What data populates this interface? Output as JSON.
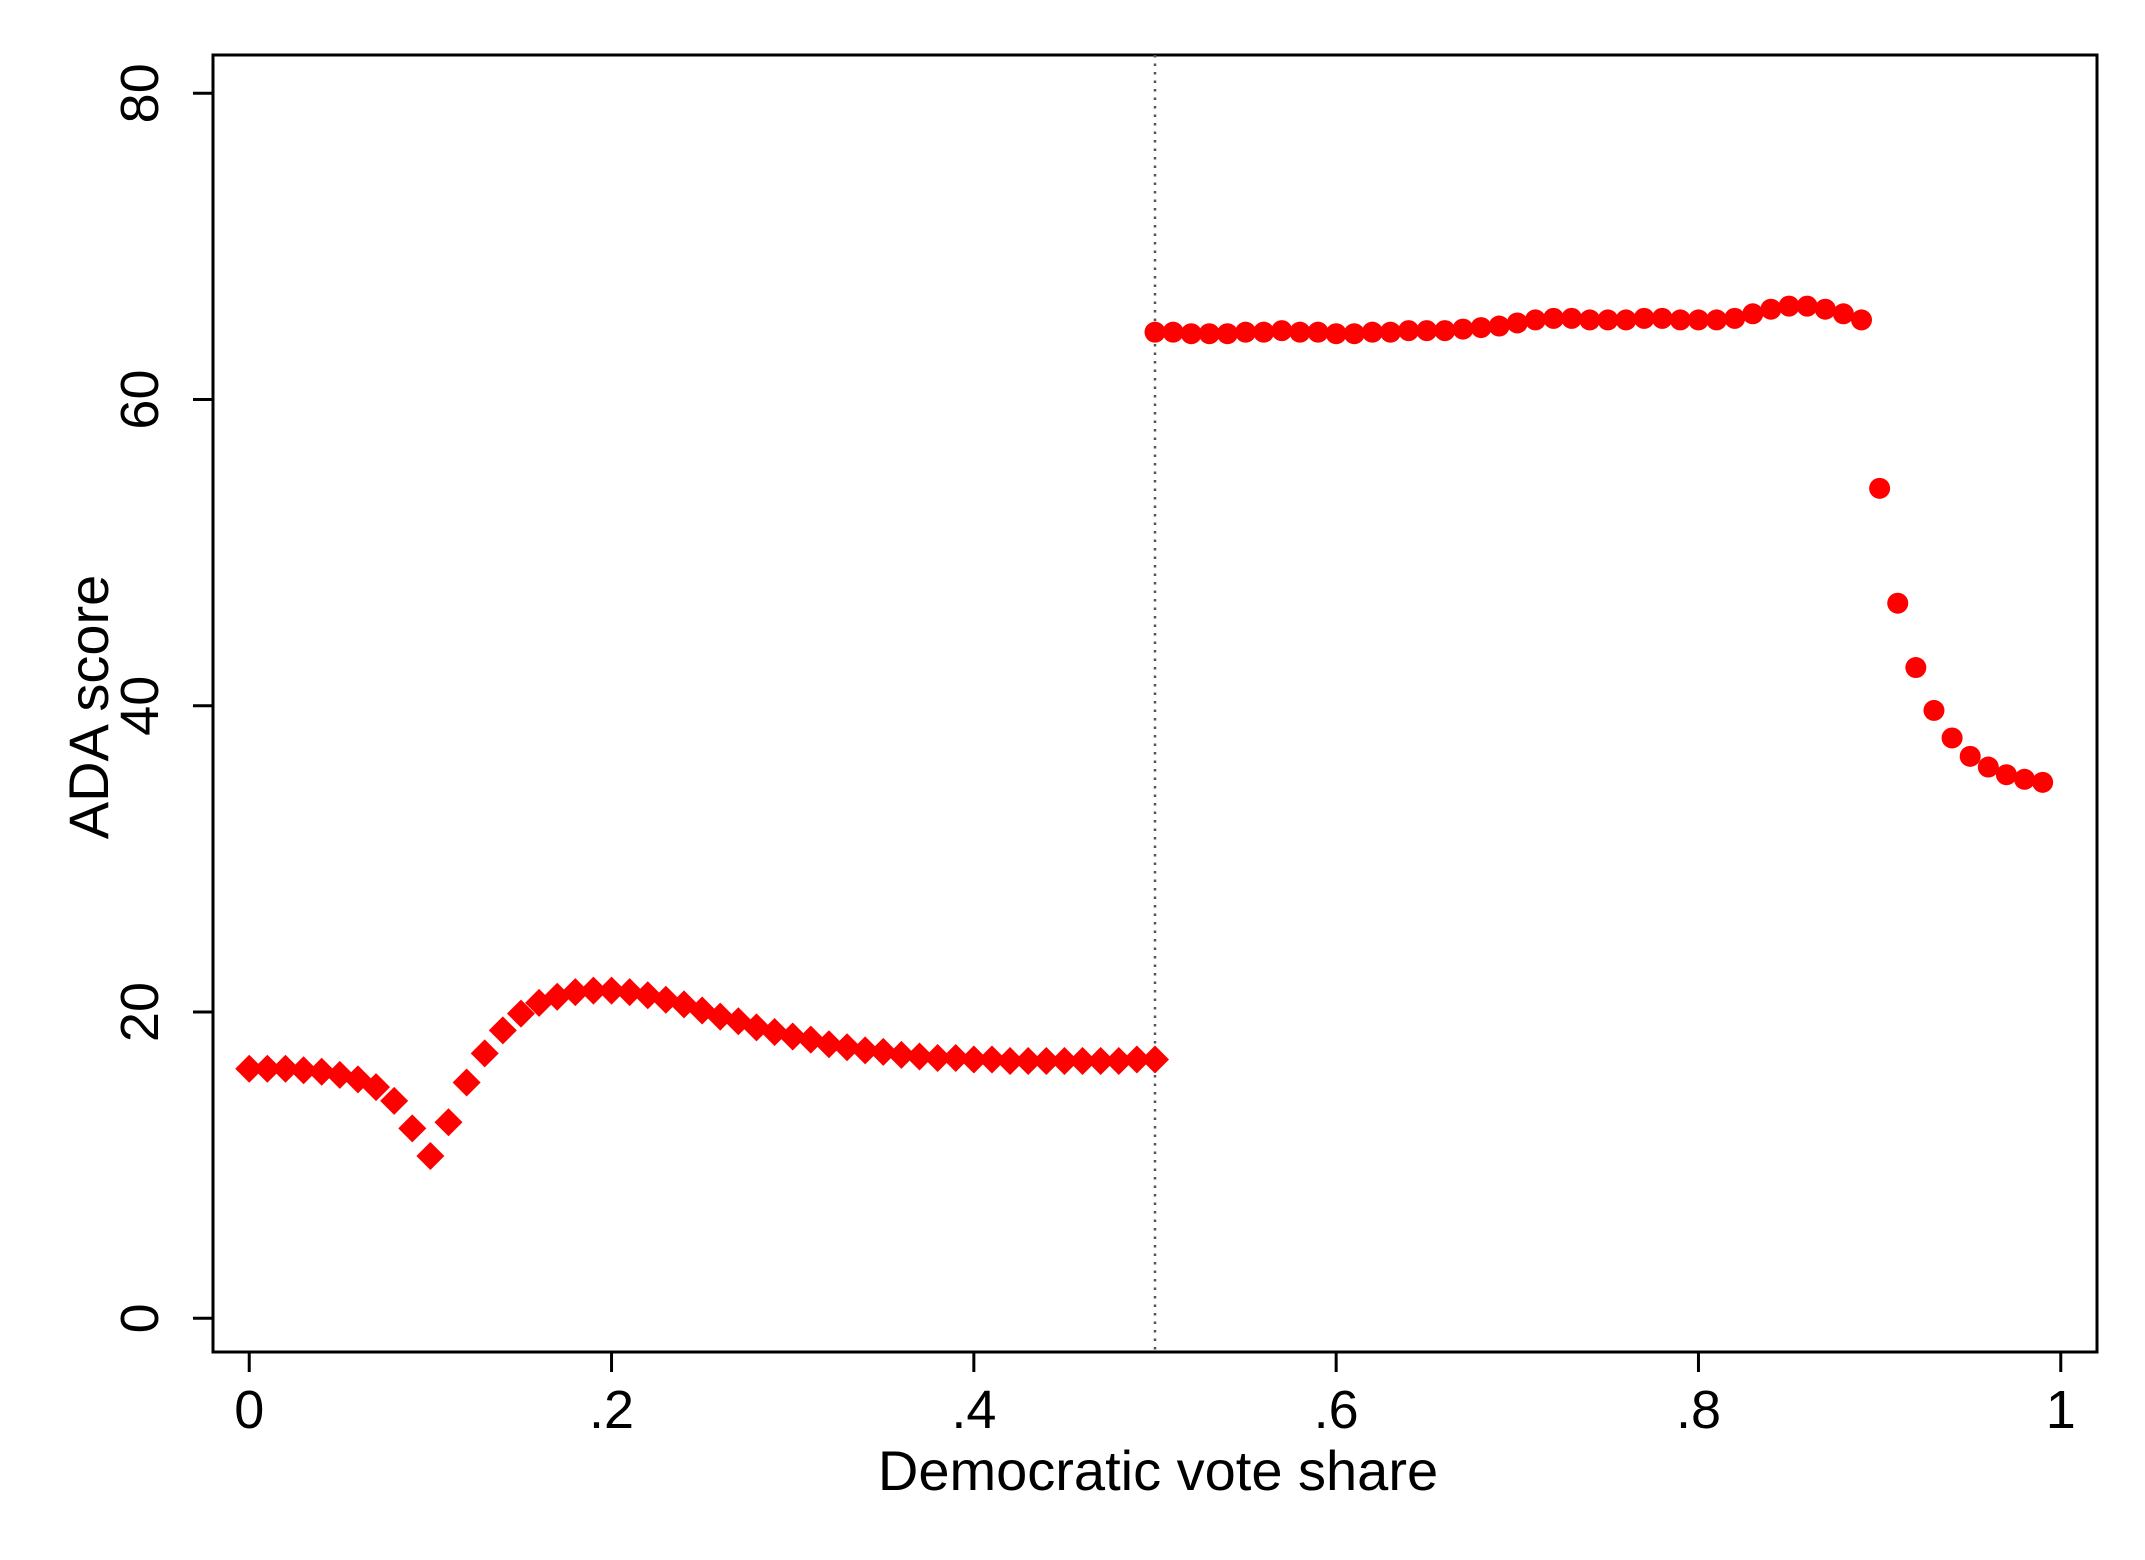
{
  "chart_data": {
    "type": "scatter",
    "title": "",
    "xlabel": "Democratic vote share",
    "ylabel": "ADA score",
    "xlim": [
      -0.02,
      1.02
    ],
    "ylim": [
      -2.2,
      82.5
    ],
    "x_ticks": [
      0,
      0.2,
      0.4,
      0.6,
      0.8,
      1
    ],
    "x_tick_labels": [
      "0",
      ".2",
      ".4",
      ".6",
      ".8",
      "1"
    ],
    "y_ticks": [
      0,
      20,
      40,
      60,
      80
    ],
    "y_tick_labels": [
      "0",
      "20",
      "40",
      "60",
      "80"
    ],
    "grid": false,
    "legend": "none",
    "cutoff_line": {
      "x": 0.5,
      "style": "dotted"
    },
    "colors": {
      "points": "#ff0000",
      "axes": "#000000",
      "cutoff": "#555555"
    },
    "series": [
      {
        "marker": "diamond",
        "points": [
          [
            0.0,
            16.3
          ],
          [
            0.01,
            16.3
          ],
          [
            0.02,
            16.3
          ],
          [
            0.03,
            16.2
          ],
          [
            0.04,
            16.1
          ],
          [
            0.05,
            15.9
          ],
          [
            0.06,
            15.6
          ],
          [
            0.07,
            15.1
          ],
          [
            0.08,
            14.2
          ],
          [
            0.09,
            12.4
          ],
          [
            0.1,
            10.6
          ],
          [
            0.11,
            12.8
          ],
          [
            0.12,
            15.4
          ],
          [
            0.13,
            17.3
          ],
          [
            0.14,
            18.8
          ],
          [
            0.15,
            19.9
          ],
          [
            0.16,
            20.6
          ],
          [
            0.17,
            21.0
          ],
          [
            0.18,
            21.3
          ],
          [
            0.19,
            21.4
          ],
          [
            0.2,
            21.4
          ],
          [
            0.21,
            21.3
          ],
          [
            0.22,
            21.1
          ],
          [
            0.23,
            20.8
          ],
          [
            0.24,
            20.5
          ],
          [
            0.25,
            20.1
          ],
          [
            0.26,
            19.7
          ],
          [
            0.27,
            19.4
          ],
          [
            0.28,
            19.0
          ],
          [
            0.29,
            18.7
          ],
          [
            0.3,
            18.4
          ],
          [
            0.31,
            18.2
          ],
          [
            0.32,
            17.9
          ],
          [
            0.33,
            17.7
          ],
          [
            0.34,
            17.5
          ],
          [
            0.35,
            17.4
          ],
          [
            0.36,
            17.2
          ],
          [
            0.37,
            17.1
          ],
          [
            0.38,
            17.0
          ],
          [
            0.39,
            17.0
          ],
          [
            0.4,
            16.9
          ],
          [
            0.41,
            16.9
          ],
          [
            0.42,
            16.8
          ],
          [
            0.43,
            16.8
          ],
          [
            0.44,
            16.8
          ],
          [
            0.45,
            16.8
          ],
          [
            0.46,
            16.8
          ],
          [
            0.47,
            16.8
          ],
          [
            0.48,
            16.8
          ],
          [
            0.49,
            16.9
          ],
          [
            0.5,
            16.9
          ]
        ]
      },
      {
        "marker": "circle",
        "points": [
          [
            0.5,
            64.4
          ],
          [
            0.51,
            64.4
          ],
          [
            0.52,
            64.3
          ],
          [
            0.53,
            64.3
          ],
          [
            0.54,
            64.3
          ],
          [
            0.55,
            64.4
          ],
          [
            0.56,
            64.4
          ],
          [
            0.57,
            64.5
          ],
          [
            0.58,
            64.4
          ],
          [
            0.59,
            64.4
          ],
          [
            0.6,
            64.3
          ],
          [
            0.61,
            64.3
          ],
          [
            0.62,
            64.4
          ],
          [
            0.63,
            64.4
          ],
          [
            0.64,
            64.5
          ],
          [
            0.65,
            64.5
          ],
          [
            0.66,
            64.5
          ],
          [
            0.67,
            64.6
          ],
          [
            0.68,
            64.7
          ],
          [
            0.69,
            64.8
          ],
          [
            0.7,
            65.0
          ],
          [
            0.71,
            65.2
          ],
          [
            0.72,
            65.3
          ],
          [
            0.73,
            65.3
          ],
          [
            0.74,
            65.2
          ],
          [
            0.75,
            65.2
          ],
          [
            0.76,
            65.2
          ],
          [
            0.77,
            65.3
          ],
          [
            0.78,
            65.3
          ],
          [
            0.79,
            65.2
          ],
          [
            0.8,
            65.2
          ],
          [
            0.81,
            65.2
          ],
          [
            0.82,
            65.3
          ],
          [
            0.83,
            65.6
          ],
          [
            0.84,
            65.9
          ],
          [
            0.85,
            66.1
          ],
          [
            0.86,
            66.1
          ],
          [
            0.87,
            65.9
          ],
          [
            0.88,
            65.6
          ],
          [
            0.89,
            65.2
          ],
          [
            0.9,
            54.2
          ],
          [
            0.91,
            46.7
          ],
          [
            0.92,
            42.5
          ],
          [
            0.93,
            39.7
          ],
          [
            0.94,
            37.9
          ],
          [
            0.95,
            36.7
          ],
          [
            0.96,
            36.0
          ],
          [
            0.97,
            35.5
          ],
          [
            0.98,
            35.2
          ],
          [
            0.99,
            35.0
          ]
        ]
      }
    ]
  }
}
